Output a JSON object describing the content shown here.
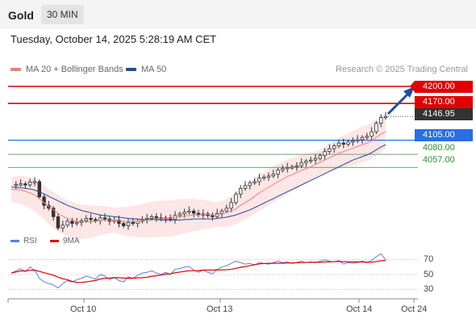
{
  "header": {
    "symbol": "Gold",
    "timeframe": "30 MIN",
    "datetime": "Tuesday, October 14, 2025 5:28:19 AM CET"
  },
  "legend": {
    "ma20_label": "MA 20 + Bollinger Bands",
    "ma50_label": "MA 50",
    "credit": "Research © 2025 Trading Central"
  },
  "colors": {
    "ma20": "#f08080",
    "ma50": "#1f4e9c",
    "resistance": "#e00000",
    "pivot": "#2a6fe0",
    "support": "#6aa86a",
    "current": "#333333",
    "candle_up": "#444444",
    "candle_down": "#333333",
    "rsi": "#5b7fe0",
    "rsi_ma": "#e00000",
    "forecast_arrow": "#1f4e9c"
  },
  "levels": {
    "r2": "4200.00",
    "r1": "4170.00",
    "current": "4146.95",
    "pivot": "4105.00",
    "s1": "4080.00",
    "s2": "4057.00"
  },
  "rsi_panel": {
    "rsi_label": "RSI",
    "ma_label": "9MA",
    "ticks": [
      "70",
      "50",
      "30"
    ]
  },
  "x_axis": {
    "labels": [
      "Oct 10",
      "Oct 13",
      "Oct 14",
      "Oct 24"
    ]
  },
  "chart_data": {
    "type": "candlestick",
    "symbol": "Gold",
    "timeframe": "30 MIN",
    "y_axis_values": [
      4200.0,
      4170.0,
      4146.95,
      4105.0,
      4080.0,
      4057.0
    ],
    "close_path": [
      4025,
      4027,
      4028,
      4026,
      4031,
      4032,
      4005,
      3990,
      3985,
      3970,
      3950,
      3955,
      3962,
      3958,
      3960,
      3963,
      3967,
      3965,
      3963,
      3968,
      3966,
      3962,
      3964,
      3958,
      3954,
      3960,
      3958,
      3962,
      3965,
      3967,
      3970,
      3968,
      3966,
      3968,
      3965,
      3972,
      3975,
      3978,
      3980,
      3976,
      3973,
      3975,
      3972,
      3970,
      3976,
      3980,
      3985,
      3995,
      4010,
      4020,
      4025,
      4030,
      4032,
      4038,
      4040,
      4042,
      4045,
      4052,
      4055,
      4057,
      4058,
      4060,
      4065,
      4068,
      4070,
      4073,
      4078,
      4085,
      4090,
      4095,
      4100,
      4098,
      4102,
      4104,
      4106,
      4110,
      4112,
      4120,
      4135,
      4145,
      4147
    ],
    "ma20": [
      4018,
      4018,
      4017,
      4015,
      4012,
      4008,
      4002,
      3995,
      3988,
      3982,
      3976,
      3971,
      3967,
      3964,
      3962,
      3961,
      3961,
      3961,
      3962,
      3963,
      3964,
      3964,
      3964,
      3963,
      3962,
      3962,
      3962,
      3962,
      3963,
      3964,
      3965,
      3966,
      3966,
      3967,
      3967,
      3968,
      3970,
      3971,
      3972,
      3973,
      3973,
      3974,
      3974,
      3973,
      3974,
      3975,
      3977,
      3980,
      3984,
      3990,
      3995,
      4000,
      4006,
      4012,
      4017,
      4022,
      4027,
      4032,
      4036,
      4041,
      4044,
      4048,
      4052,
      4055,
      4058,
      4062,
      4066,
      4070,
      4074,
      4078,
      4082,
      4085,
      4088,
      4091,
      4094,
      4097,
      4100,
      4104,
      4110,
      4116,
      4120
    ],
    "ma50": [
      4022,
      4022,
      4021,
      4020,
      4019,
      4017,
      4014,
      4010,
      4006,
      4002,
      3998,
      3994,
      3990,
      3987,
      3984,
      3981,
      3979,
      3977,
      3975,
      3973,
      3972,
      3971,
      3970,
      3969,
      3968,
      3967,
      3966,
      3966,
      3965,
      3965,
      3965,
      3965,
      3964,
      3964,
      3964,
      3964,
      3964,
      3965,
      3965,
      3966,
      3966,
      3966,
      3966,
      3966,
      3967,
      3968,
      3969,
      3971,
      3973,
      3976,
      3979,
      3982,
      3986,
      3990,
      3994,
      3998,
      4002,
      4006,
      4010,
      4014,
      4018,
      4022,
      4026,
      4030,
      4034,
      4038,
      4042,
      4046,
      4050,
      4054,
      4058,
      4062,
      4066,
      4070,
      4073,
      4076,
      4079,
      4083,
      4088,
      4093,
      4097
    ],
    "rsi": [
      52,
      55,
      58,
      54,
      60,
      56,
      45,
      40,
      38,
      36,
      32,
      38,
      42,
      40,
      43,
      45,
      48,
      46,
      44,
      50,
      48,
      43,
      46,
      42,
      40,
      47,
      45,
      49,
      52,
      53,
      55,
      52,
      50,
      53,
      50,
      57,
      58,
      60,
      61,
      56,
      53,
      56,
      53,
      51,
      57,
      60,
      62,
      65,
      68,
      66,
      64,
      65,
      63,
      66,
      65,
      64,
      66,
      68,
      66,
      67,
      65,
      66,
      68,
      66,
      67,
      66,
      68,
      70,
      68,
      67,
      69,
      64,
      66,
      65,
      66,
      68,
      66,
      69,
      74,
      78,
      70
    ],
    "forecast_target": 4200.0
  }
}
